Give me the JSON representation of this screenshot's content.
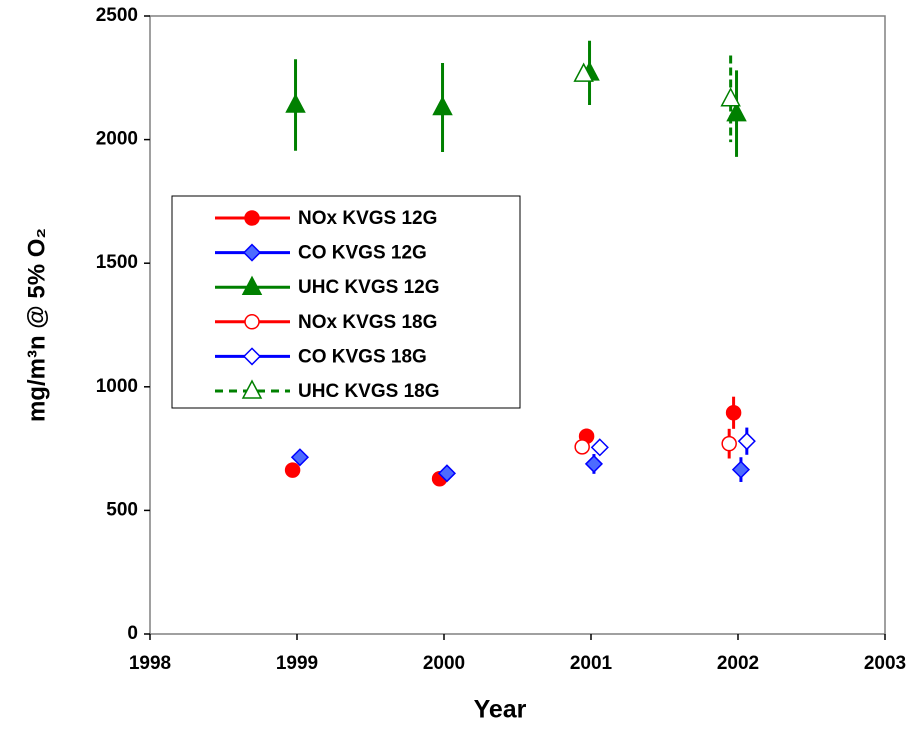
{
  "chart_data": {
    "type": "scatter",
    "xlabel": "Year",
    "ylabel": "mg/m³n @ 5% O₂",
    "xlim": [
      1998,
      2003
    ],
    "xticks": [
      1998,
      1999,
      2000,
      2001,
      2002,
      2003
    ],
    "ylim": [
      0,
      2500
    ],
    "yticks": [
      0,
      500,
      1000,
      1500,
      2000,
      2500
    ],
    "grid": false,
    "legend_position": "center-left",
    "series": [
      {
        "name": "NOx KVGS 12G",
        "color": "#ff0000",
        "marker": "circle",
        "filled": true,
        "dash": false,
        "x": [
          1998.97,
          1999.97,
          2000.97,
          2001.97
        ],
        "values": [
          663,
          628,
          800,
          895
        ],
        "errors": [
          null,
          20,
          30,
          65
        ]
      },
      {
        "name": "CO KVGS 12G",
        "color": "#0000ff",
        "marker": "diamond",
        "filled": true,
        "dash": false,
        "x": [
          1999.02,
          2000.02,
          2001.02,
          2002.02
        ],
        "values": [
          715,
          650,
          688,
          665
        ],
        "errors": [
          null,
          25,
          40,
          50
        ]
      },
      {
        "name": "UHC KVGS 12G",
        "color": "#008000",
        "marker": "triangle",
        "filled": true,
        "dash": false,
        "x": [
          1998.99,
          1999.99,
          2000.99,
          2001.99
        ],
        "values": [
          2140,
          2130,
          2270,
          2105
        ],
        "errors": [
          185,
          180,
          130,
          175
        ]
      },
      {
        "name": "NOx KVGS 18G",
        "color": "#ff0000",
        "marker": "circle",
        "filled": false,
        "dash": false,
        "x": [
          2000.94,
          2001.94
        ],
        "values": [
          757,
          770
        ],
        "errors": [
          null,
          60
        ]
      },
      {
        "name": "CO KVGS 18G",
        "color": "#0000ff",
        "marker": "diamond",
        "filled": false,
        "dash": false,
        "x": [
          2001.06,
          2002.06
        ],
        "values": [
          755,
          780
        ],
        "errors": [
          null,
          55
        ]
      },
      {
        "name": "UHC KVGS 18G",
        "color": "#008000",
        "marker": "triangle",
        "filled": false,
        "dash": true,
        "x": [
          2000.95,
          2001.95
        ],
        "values": [
          2265,
          2165
        ],
        "errors": [
          null,
          175
        ]
      }
    ]
  }
}
